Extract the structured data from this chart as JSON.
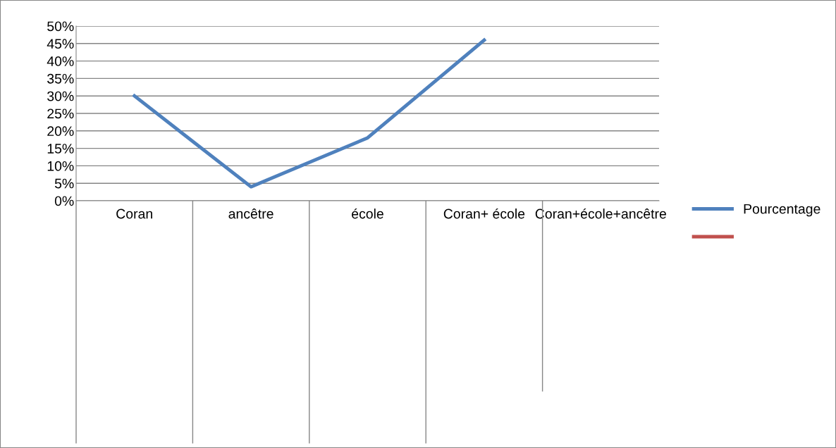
{
  "chart_data": {
    "type": "line",
    "categories": [
      "Coran",
      "ancêtre",
      "école",
      "Coran+ école",
      "Coran+école+ancêtre"
    ],
    "series": [
      {
        "name": "Pourcentage",
        "color": "#4f81bd",
        "values": [
          30,
          4,
          18,
          46,
          null
        ]
      },
      {
        "color": "#c0504d",
        "values": [
          null,
          null,
          null,
          null,
          null
        ]
      }
    ],
    "ylim": [
      0,
      50
    ],
    "yticks": [
      {
        "value": 0,
        "label": "0%"
      },
      {
        "value": 5,
        "label": "5%"
      },
      {
        "value": 10,
        "label": "10%"
      },
      {
        "value": 15,
        "label": "15%"
      },
      {
        "value": 20,
        "label": "20%"
      },
      {
        "value": 25,
        "label": "25%"
      },
      {
        "value": 30,
        "label": "30%"
      },
      {
        "value": 35,
        "label": "35%"
      },
      {
        "value": 40,
        "label": "40%"
      },
      {
        "value": 45,
        "label": "45%"
      },
      {
        "value": 50,
        "label": "50%"
      }
    ],
    "grid": "y",
    "legend": "right",
    "marker": "none",
    "line_style": "solid"
  }
}
